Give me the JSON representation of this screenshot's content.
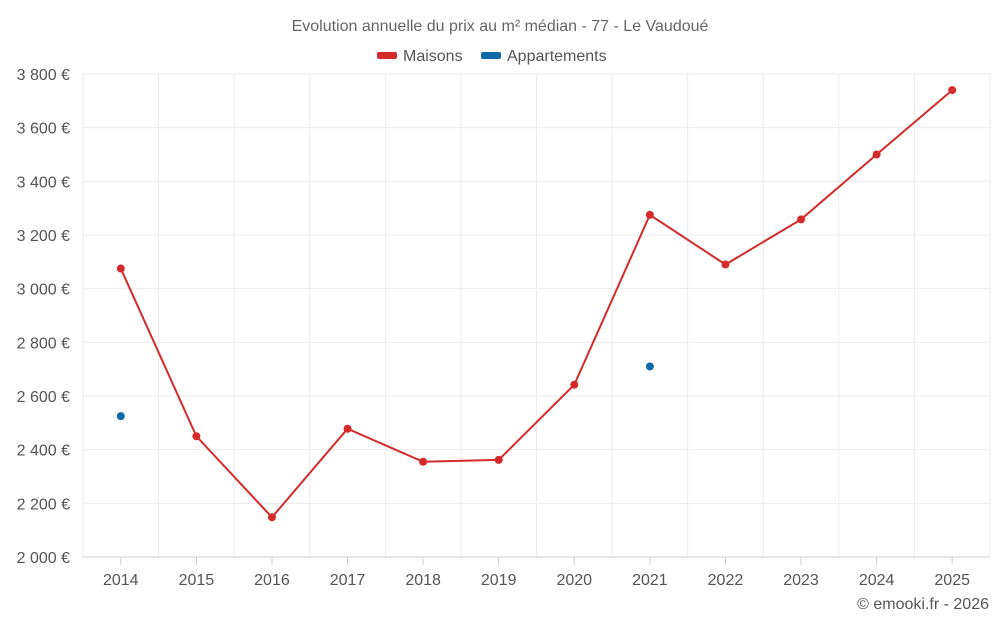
{
  "chart_data": {
    "type": "line",
    "title": "Evolution annuelle du prix au m² médian - 77 - Le Vaudoué",
    "categories": [
      "2014",
      "2015",
      "2016",
      "2017",
      "2018",
      "2019",
      "2020",
      "2021",
      "2022",
      "2023",
      "2024",
      "2025"
    ],
    "series": [
      {
        "name": "Maisons",
        "color": "#d42a2a",
        "values": [
          3075,
          2450,
          2148,
          2478,
          2355,
          2362,
          2642,
          3275,
          3090,
          3258,
          3500,
          3740
        ]
      },
      {
        "name": "Appartements",
        "color": "#0d6aa8",
        "values": [
          2525,
          null,
          null,
          null,
          null,
          null,
          null,
          2710,
          null,
          null,
          null,
          null
        ]
      }
    ],
    "ylim": [
      2000,
      3800
    ],
    "yticks": [
      2000,
      2200,
      2400,
      2600,
      2800,
      3000,
      3200,
      3400,
      3600,
      3800
    ],
    "ytick_labels": [
      "2 000 €",
      "2 200 €",
      "2 400 €",
      "2 600 €",
      "2 800 €",
      "3 000 €",
      "3 200 €",
      "3 400 €",
      "3 600 €",
      "3 800 €"
    ],
    "xlabel": "",
    "ylabel": "",
    "grid": true,
    "legend_position": "top-center"
  },
  "credit": "© emooki.fr - 2026"
}
